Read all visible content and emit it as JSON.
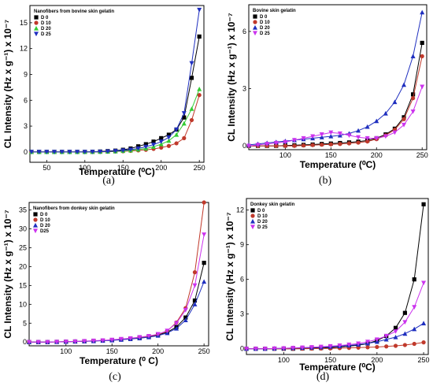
{
  "figure": {
    "captions": [
      "(a)",
      "(b)",
      "(c)",
      "(d)"
    ]
  },
  "chart_data": [
    {
      "type": "line",
      "panel": "(a)",
      "title": "Nanofibers from bovine skin gelatin",
      "xlabel": "Temperature (⁰C)",
      "ylabel": "CL Intensity (Hz x g⁻¹) x 10⁻⁷",
      "xlim": [
        28,
        256
      ],
      "ylim": [
        -1.2,
        17
      ],
      "xticks": [
        50,
        100,
        150,
        200,
        250
      ],
      "yticks": [
        0,
        3,
        6,
        9,
        12,
        15
      ],
      "legend_position": "top-left",
      "x": [
        30,
        40,
        50,
        60,
        70,
        80,
        90,
        100,
        110,
        120,
        130,
        140,
        150,
        160,
        170,
        180,
        190,
        200,
        210,
        220,
        230,
        240,
        250
      ],
      "series": [
        {
          "name": "D 0",
          "color": "#000000",
          "marker": "square",
          "values": [
            0,
            0,
            0,
            0,
            0,
            0,
            0,
            0,
            0.02,
            0.05,
            0.1,
            0.15,
            0.25,
            0.4,
            0.65,
            0.9,
            1.2,
            1.6,
            2.0,
            2.6,
            4.0,
            8.6,
            13.4
          ]
        },
        {
          "name": "D 10",
          "color": "#c0392b",
          "marker": "circle",
          "values": [
            0,
            0,
            0,
            0,
            0,
            0,
            0,
            0,
            0,
            0.01,
            0.03,
            0.05,
            0.08,
            0.12,
            0.18,
            0.25,
            0.35,
            0.5,
            0.7,
            1.0,
            1.6,
            3.7,
            6.6
          ]
        },
        {
          "name": "D 20",
          "color": "#33cc33",
          "marker": "triangle-up",
          "values": [
            0,
            0,
            0,
            0,
            0,
            0,
            0,
            0,
            0.01,
            0.02,
            0.04,
            0.07,
            0.12,
            0.18,
            0.28,
            0.4,
            0.6,
            0.9,
            1.3,
            2.0,
            3.3,
            5.0,
            7.3
          ]
        },
        {
          "name": "D 25",
          "color": "#1f2fbf",
          "marker": "triangle-down",
          "values": [
            0,
            0,
            0,
            0,
            0,
            0,
            0,
            0,
            0.01,
            0.03,
            0.06,
            0.1,
            0.17,
            0.27,
            0.4,
            0.6,
            0.85,
            1.2,
            1.7,
            2.6,
            4.5,
            10.3,
            16.5
          ]
        }
      ]
    },
    {
      "type": "line",
      "panel": "(b)",
      "title": "Bovine skin gelatin",
      "xlabel": "Temperature (⁰C)",
      "ylabel": "CL Intensity (Hz x g⁻¹) x 10⁻⁷",
      "xlim": [
        60,
        255
      ],
      "ylim": [
        -0.2,
        7.4
      ],
      "xticks": [
        100,
        150,
        200,
        250
      ],
      "yticks": [
        0,
        3,
        6
      ],
      "legend_position": "top-left",
      "x": [
        60,
        70,
        80,
        90,
        100,
        110,
        120,
        130,
        140,
        150,
        160,
        170,
        180,
        190,
        200,
        210,
        220,
        230,
        240,
        250
      ],
      "series": [
        {
          "name": "D 0",
          "color": "#000000",
          "marker": "square",
          "values": [
            0,
            0,
            0,
            0,
            0.02,
            0.03,
            0.05,
            0.07,
            0.1,
            0.12,
            0.15,
            0.18,
            0.22,
            0.28,
            0.4,
            0.6,
            0.9,
            1.5,
            2.7,
            5.4
          ]
        },
        {
          "name": "D 10",
          "color": "#c0392b",
          "marker": "circle",
          "values": [
            0,
            0,
            0,
            0,
            0,
            0,
            0.02,
            0.04,
            0.06,
            0.08,
            0.1,
            0.13,
            0.17,
            0.23,
            0.35,
            0.55,
            0.85,
            1.4,
            2.5,
            4.7
          ]
        },
        {
          "name": "D 20",
          "color": "#1f2fbf",
          "marker": "triangle-up",
          "values": [
            0.05,
            0.1,
            0.15,
            0.2,
            0.25,
            0.3,
            0.35,
            0.4,
            0.45,
            0.5,
            0.55,
            0.65,
            0.8,
            1.0,
            1.3,
            1.7,
            2.3,
            3.2,
            4.7,
            7.0
          ]
        },
        {
          "name": "D 25",
          "color": "#cc33ee",
          "marker": "triangle-down",
          "values": [
            0,
            0.05,
            0.1,
            0.15,
            0.2,
            0.3,
            0.4,
            0.5,
            0.6,
            0.7,
            0.65,
            0.55,
            0.45,
            0.4,
            0.4,
            0.5,
            0.7,
            1.1,
            1.8,
            3.1
          ]
        }
      ]
    },
    {
      "type": "line",
      "panel": "(c)",
      "title": "Nanofibers from donkey skin gelatin",
      "xlabel": "Temperature (⁰ C)",
      "ylabel": "CL Intensity (Hz x g⁻¹) x 10⁻⁷",
      "xlim": [
        60,
        255
      ],
      "ylim": [
        -1,
        37
      ],
      "xticks": [
        100,
        150,
        200,
        250
      ],
      "yticks": [
        0,
        5,
        10,
        15,
        20,
        25,
        30,
        35
      ],
      "legend_position": "top-left",
      "x": [
        60,
        70,
        80,
        90,
        100,
        110,
        120,
        130,
        140,
        150,
        160,
        170,
        180,
        190,
        200,
        210,
        220,
        230,
        240,
        250
      ],
      "series": [
        {
          "name": "D 0",
          "color": "#000000",
          "marker": "square",
          "values": [
            0,
            0,
            0,
            0.05,
            0.1,
            0.15,
            0.2,
            0.3,
            0.4,
            0.5,
            0.7,
            0.9,
            1.1,
            1.4,
            1.9,
            2.6,
            4.0,
            6.5,
            11.0,
            21.0
          ]
        },
        {
          "name": "D 10",
          "color": "#c0392b",
          "marker": "circle",
          "values": [
            0,
            0,
            0,
            0.05,
            0.1,
            0.15,
            0.2,
            0.3,
            0.4,
            0.55,
            0.75,
            0.95,
            1.2,
            1.5,
            2.0,
            2.9,
            5.2,
            9.0,
            18.5,
            37.0
          ]
        },
        {
          "name": "D 20",
          "color": "#1f2fbf",
          "marker": "triangle-up",
          "values": [
            0,
            0,
            0,
            0.05,
            0.1,
            0.15,
            0.2,
            0.25,
            0.35,
            0.45,
            0.6,
            0.8,
            1.0,
            1.3,
            1.7,
            2.4,
            3.6,
            5.8,
            10.0,
            16.0
          ]
        },
        {
          "name": "D25",
          "color": "#cc33ee",
          "marker": "triangle-down",
          "values": [
            0,
            0,
            0,
            0.05,
            0.1,
            0.15,
            0.25,
            0.35,
            0.45,
            0.6,
            0.8,
            1.0,
            1.3,
            1.6,
            2.1,
            3.0,
            5.0,
            8.5,
            15.0,
            28.5
          ]
        }
      ]
    },
    {
      "type": "line",
      "panel": "(d)",
      "title": "Donkey skin gelatin",
      "xlabel": "Temperature (⁰C)",
      "ylabel": "CL Intensity (Hz x g⁻¹) x 10⁻⁷",
      "xlim": [
        60,
        255
      ],
      "ylim": [
        -0.5,
        13
      ],
      "xticks": [
        100,
        150,
        200,
        250
      ],
      "yticks": [
        0,
        3,
        6,
        9,
        12
      ],
      "legend_position": "top-left",
      "x": [
        60,
        70,
        80,
        90,
        100,
        110,
        120,
        130,
        140,
        150,
        160,
        170,
        180,
        190,
        200,
        210,
        220,
        230,
        240,
        250
      ],
      "series": [
        {
          "name": "D 0",
          "color": "#000000",
          "marker": "square",
          "values": [
            0,
            0,
            0,
            0,
            0,
            0,
            0.02,
            0.04,
            0.06,
            0.1,
            0.15,
            0.22,
            0.3,
            0.45,
            0.7,
            1.1,
            1.8,
            3.1,
            6.0,
            12.5
          ]
        },
        {
          "name": "D 10",
          "color": "#c0392b",
          "marker": "circle",
          "values": [
            0,
            0,
            0,
            0,
            0,
            0,
            0,
            0.01,
            0.02,
            0.03,
            0.05,
            0.07,
            0.09,
            0.12,
            0.15,
            0.2,
            0.25,
            0.32,
            0.42,
            0.55
          ]
        },
        {
          "name": "D 20",
          "color": "#1f2fbf",
          "marker": "triangle-up",
          "values": [
            0,
            0,
            0,
            0.02,
            0.04,
            0.06,
            0.08,
            0.1,
            0.13,
            0.17,
            0.22,
            0.28,
            0.36,
            0.46,
            0.6,
            0.8,
            1.0,
            1.3,
            1.7,
            2.2
          ]
        },
        {
          "name": "D 25",
          "color": "#cc33ee",
          "marker": "triangle-down",
          "values": [
            0,
            0,
            0,
            0.02,
            0.04,
            0.07,
            0.1,
            0.13,
            0.17,
            0.22,
            0.28,
            0.35,
            0.45,
            0.6,
            0.8,
            1.1,
            1.5,
            2.3,
            3.6,
            5.7
          ]
        }
      ]
    }
  ]
}
